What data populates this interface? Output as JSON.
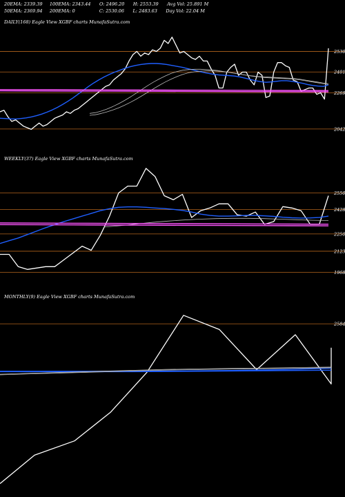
{
  "header": {
    "row1": [
      {
        "label": "20EMA",
        "value": "2339.39"
      },
      {
        "label": "100EMA",
        "value": "2343.44"
      },
      {
        "label": "O",
        "value": "2496.20"
      },
      {
        "label": "H",
        "value": "2553.39"
      },
      {
        "label": "Avg Vol",
        "value": "25.891 M"
      }
    ],
    "row2": [
      {
        "label": "50EMA",
        "value": "2369.94"
      },
      {
        "label": "200EMA",
        "value": "0"
      },
      {
        "label": "C",
        "value": "2530.06"
      },
      {
        "label": "L",
        "value": "2483.63"
      },
      {
        "label": "Day Vol",
        "value": "22.04 M"
      }
    ]
  },
  "colors": {
    "background": "#000000",
    "price": "#ffffff",
    "ema_blue": "#1f5fff",
    "ema_gray": "#bbbbbb",
    "ma_pink": "#ff55ff",
    "level_line": "#b5651d"
  },
  "chart_data": [
    {
      "type": "line",
      "title": "DAILY(168) Eagle  View  XGBF charts MunafaSutra.com",
      "y_ticks": [
        2530,
        2401,
        2269,
        2042
      ],
      "ylim": [
        1920,
        2680
      ],
      "levels": [
        2530,
        2401,
        2269,
        2042
      ],
      "series": [
        {
          "role": "price",
          "values": [
            2150,
            2160,
            2120,
            2090,
            2100,
            2080,
            2060,
            2050,
            2040,
            2060,
            2080,
            2060,
            2070,
            2090,
            2110,
            2120,
            2130,
            2150,
            2140,
            2160,
            2170,
            2190,
            2210,
            2230,
            2250,
            2270,
            2290,
            2310,
            2320,
            2350,
            2370,
            2390,
            2420,
            2470,
            2510,
            2530,
            2500,
            2520,
            2510,
            2540,
            2530,
            2550,
            2600,
            2580,
            2620,
            2570,
            2520,
            2530,
            2510,
            2490,
            2480,
            2500,
            2470,
            2470,
            2420,
            2380,
            2300,
            2300,
            2400,
            2430,
            2450,
            2380,
            2400,
            2400,
            2350,
            2320,
            2400,
            2380,
            2240,
            2250,
            2400,
            2460,
            2460,
            2440,
            2430,
            2350,
            2340,
            2280,
            2290,
            2300,
            2300,
            2260,
            2270,
            2230,
            2550
          ]
        },
        {
          "role": "ema_blue",
          "values": [
            2110,
            2108,
            2106,
            2105,
            2108,
            2112,
            2118,
            2126,
            2136,
            2148,
            2162,
            2178,
            2196,
            2216,
            2238,
            2262,
            2286,
            2310,
            2332,
            2352,
            2370,
            2386,
            2400,
            2412,
            2424,
            2434,
            2442,
            2448,
            2452,
            2454,
            2454,
            2452,
            2448,
            2442,
            2436,
            2430,
            2422,
            2414,
            2406,
            2398,
            2392,
            2386,
            2382,
            2380,
            2378,
            2375,
            2370,
            2362,
            2354,
            2346,
            2340,
            2336,
            2338,
            2342,
            2346,
            2346,
            2342,
            2336,
            2330,
            2322,
            2316,
            2312,
            2310,
            2320
          ]
        },
        {
          "role": "ema_gray",
          "values": [
            2140,
            2145,
            2155,
            2168,
            2184,
            2202,
            2222,
            2244,
            2268,
            2292,
            2316,
            2338,
            2358,
            2376,
            2392,
            2404,
            2412,
            2416,
            2418,
            2418,
            2416,
            2414,
            2410,
            2404,
            2398,
            2392,
            2386,
            2380,
            2376,
            2372,
            2370,
            2368,
            2366,
            2364,
            2362,
            2360,
            2356,
            2350,
            2344,
            2338,
            2332,
            2328
          ]
        },
        {
          "role": "ema_gray",
          "values": [
            2128,
            2132,
            2140,
            2150,
            2162,
            2176,
            2192,
            2210,
            2230,
            2252,
            2274,
            2296,
            2318,
            2338,
            2356,
            2372,
            2386,
            2396,
            2402,
            2406,
            2408,
            2408,
            2406,
            2402,
            2398,
            2392,
            2386,
            2380,
            2374,
            2370,
            2366,
            2364,
            2362,
            2360,
            2358,
            2356,
            2352,
            2346,
            2340,
            2334,
            2328,
            2322
          ]
        },
        {
          "role": "ma_pink",
          "values": [
            2290,
            2289,
            2288,
            2287,
            2286,
            2285,
            2284
          ]
        },
        {
          "role": "ma_pink",
          "values": [
            2282,
            2281,
            2280,
            2279,
            2278,
            2277,
            2276
          ]
        }
      ]
    },
    {
      "type": "line",
      "title": "WEEKLY(37) Eagle  View  XGBF charts MunafaSutra.com",
      "y_ticks": [
        2550,
        2428,
        2250,
        2123,
        1968
      ],
      "ylim": [
        1880,
        2760
      ],
      "levels": [
        2550,
        2428,
        2250,
        2123,
        1968
      ],
      "series": [
        {
          "role": "price",
          "values": [
            2100,
            2100,
            2010,
            1990,
            2000,
            2010,
            2010,
            2060,
            2110,
            2160,
            2130,
            2240,
            2380,
            2550,
            2600,
            2600,
            2730,
            2670,
            2530,
            2500,
            2540,
            2370,
            2420,
            2440,
            2470,
            2470,
            2390,
            2380,
            2410,
            2320,
            2340,
            2450,
            2440,
            2420,
            2320,
            2320,
            2530
          ]
        },
        {
          "role": "ema_blue",
          "values": [
            2180,
            2200,
            2220,
            2245,
            2270,
            2295,
            2318,
            2340,
            2360,
            2380,
            2400,
            2420,
            2435,
            2445,
            2448,
            2448,
            2445,
            2440,
            2436,
            2430,
            2422,
            2410,
            2395,
            2385,
            2380,
            2380,
            2382,
            2385,
            2385,
            2382,
            2378,
            2372,
            2368,
            2366,
            2367,
            2370,
            2380
          ]
        },
        {
          "role": "ema_gray",
          "values": [
            2300,
            2310,
            2322,
            2334,
            2344,
            2352,
            2358,
            2362,
            2364,
            2364,
            2362,
            2358,
            2354,
            2350,
            2348
          ]
        },
        {
          "role": "ma_pink",
          "values": [
            2330,
            2329,
            2328,
            2327,
            2326,
            2325,
            2324,
            2323,
            2322,
            2321
          ]
        },
        {
          "role": "ma_pink",
          "values": [
            2318,
            2317,
            2316,
            2315,
            2314,
            2313,
            2312,
            2311,
            2310,
            2309
          ]
        }
      ]
    },
    {
      "type": "line",
      "title": "MONTHLY(9) Eagle  View  XGBF charts MunafaSutra.com",
      "y_ticks": [
        2584
      ],
      "ylim": [
        1300,
        2750
      ],
      "levels": [
        2584
      ],
      "series": [
        {
          "role": "price",
          "values": [
            1350,
            1570,
            1680,
            1900,
            2210,
            2650,
            2540,
            2230,
            2500,
            2120,
            2400
          ]
        },
        {
          "role": "ema_blue",
          "values": [
            2215,
            2215,
            2215,
            2215,
            2215,
            2216,
            2218,
            2220,
            2222,
            2224,
            2226
          ]
        },
        {
          "role": "ema_blue",
          "values": [
            2218,
            2218,
            2218,
            2218,
            2218,
            2219,
            2221,
            2224,
            2228,
            2234,
            2242
          ]
        },
        {
          "role": "ema_gray",
          "values": [
            2195,
            2203,
            2210,
            2218,
            2225,
            2232,
            2236,
            2240,
            2242,
            2246,
            2250
          ]
        },
        {
          "role": "ema_gray",
          "values": [
            2190,
            2198,
            2205,
            2212,
            2220,
            2227,
            2231,
            2235,
            2238,
            2241,
            2245
          ]
        }
      ]
    }
  ]
}
